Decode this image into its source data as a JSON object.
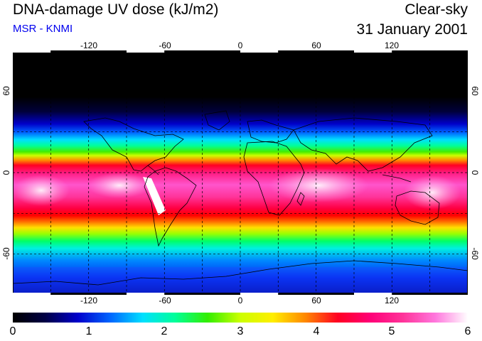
{
  "header": {
    "title": "DNA-damage UV dose (kJ/m2)",
    "subtitle": "MSR - KNMI",
    "sky_condition": "Clear-sky",
    "date": "31 January 2001"
  },
  "map": {
    "projection": "equirectangular",
    "longitude_range": [
      -180,
      180
    ],
    "latitude_range": [
      -90,
      90
    ],
    "longitude_ticks": [
      "-120",
      "-60",
      "0",
      "60",
      "120"
    ],
    "latitude_ticks": [
      "60",
      "0",
      "-60"
    ],
    "grid": "dashed every 30 degrees",
    "field": "DNA-damage UV dose",
    "colors": {
      "gradient": [
        "#000000",
        "#000045",
        "#0000cc",
        "#0066ff",
        "#00e0ff",
        "#00ff99",
        "#33ee00",
        "#ccff00",
        "#ffee00",
        "#ff8800",
        "#ff0022",
        "#ff0077",
        "#ff3399",
        "#ff77dd",
        "#ffffff"
      ]
    }
  },
  "colorbar": {
    "labels": [
      "0",
      "1",
      "2",
      "3",
      "4",
      "5",
      "6"
    ],
    "min": 0,
    "max": 6
  }
}
